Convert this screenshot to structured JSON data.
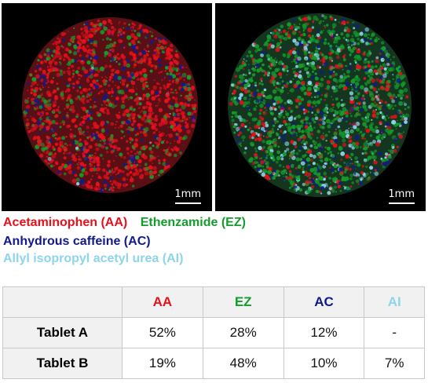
{
  "legend": {
    "aa": "Acetaminophen (AA)",
    "ez": "Ethenzamide (EZ)",
    "ac": "Anhydrous caffeine (AC)",
    "ai": "Allyl isopropyl acetyl urea (AI)"
  },
  "scale_bar": "1mm",
  "colors": {
    "aa": "#e8101b",
    "ez": "#149c2c",
    "ac": "#101a8c",
    "ai": "#8dd4ec"
  },
  "table": {
    "headers": [
      "AA",
      "EZ",
      "AC",
      "AI"
    ],
    "rows": [
      {
        "label": "Tablet A",
        "values": [
          "52%",
          "28%",
          "12%",
          "-"
        ]
      },
      {
        "label": "Tablet B",
        "values": [
          "19%",
          "48%",
          "10%",
          "7%"
        ]
      }
    ]
  }
}
